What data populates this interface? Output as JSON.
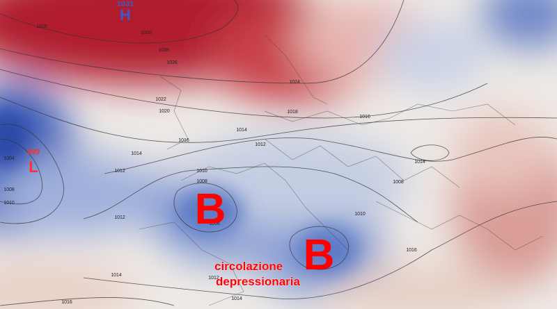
{
  "pressure_centers": [
    {
      "value": "1031",
      "symbol": "H"
    },
    {
      "value": "999",
      "symbol": "L"
    }
  ],
  "isobar_labels": [
    "1020",
    "1030",
    "1028",
    "1026",
    "1024",
    "1022",
    "1020",
    "1018",
    "1016",
    "1014",
    "1014",
    "1016",
    "1012",
    "1012",
    "1004",
    "1008",
    "1010",
    "1010",
    "1008",
    "1012",
    "1006",
    "1008",
    "1014",
    "1010",
    "1016",
    "1014",
    "1012",
    "1014",
    "1016"
  ],
  "lows": [
    "B",
    "B"
  ],
  "caption_lines": [
    "circolazione",
    "depressionaria"
  ]
}
